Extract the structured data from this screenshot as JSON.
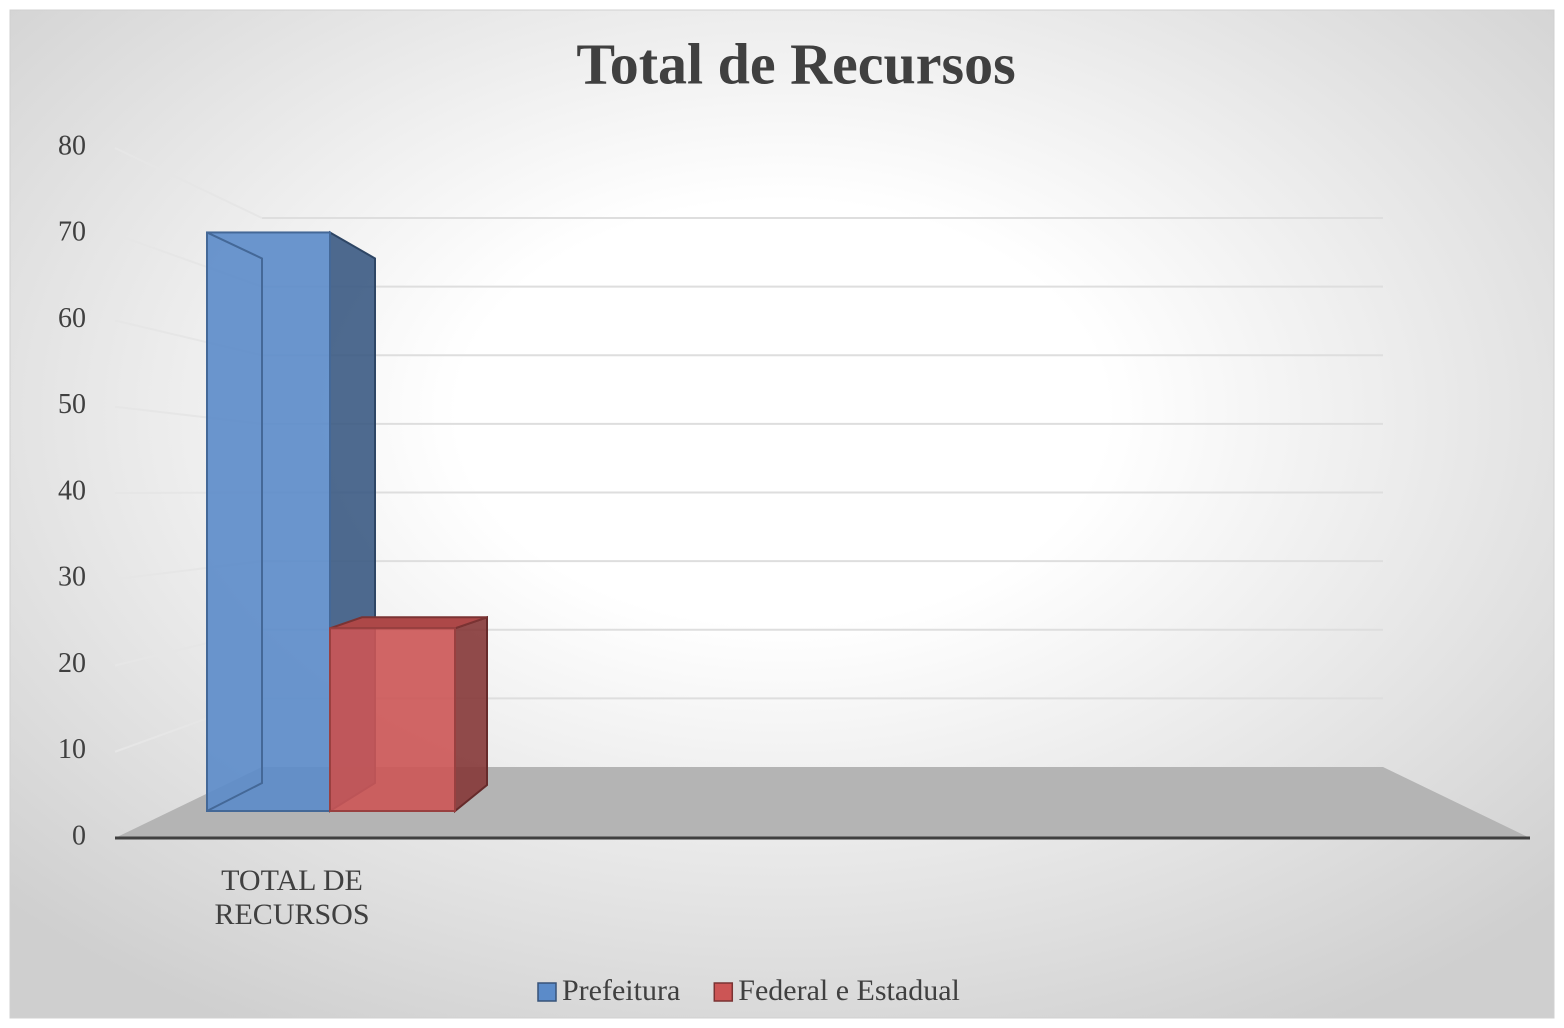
{
  "chart_data": {
    "type": "bar3d",
    "title": "Total de Recursos",
    "categories": [
      "TOTAL DE RECURSOS"
    ],
    "series": [
      {
        "name": "Prefeitura",
        "color": "#5b8bc9",
        "values": [
          76
        ]
      },
      {
        "name": "Federal e Estadual",
        "color": "#cc5555",
        "values": [
          24
        ]
      }
    ],
    "ylim": [
      0,
      80
    ],
    "yticks": [
      0,
      10,
      20,
      30,
      40,
      50,
      60,
      70,
      80
    ],
    "grid": true,
    "legend": "bottom"
  }
}
